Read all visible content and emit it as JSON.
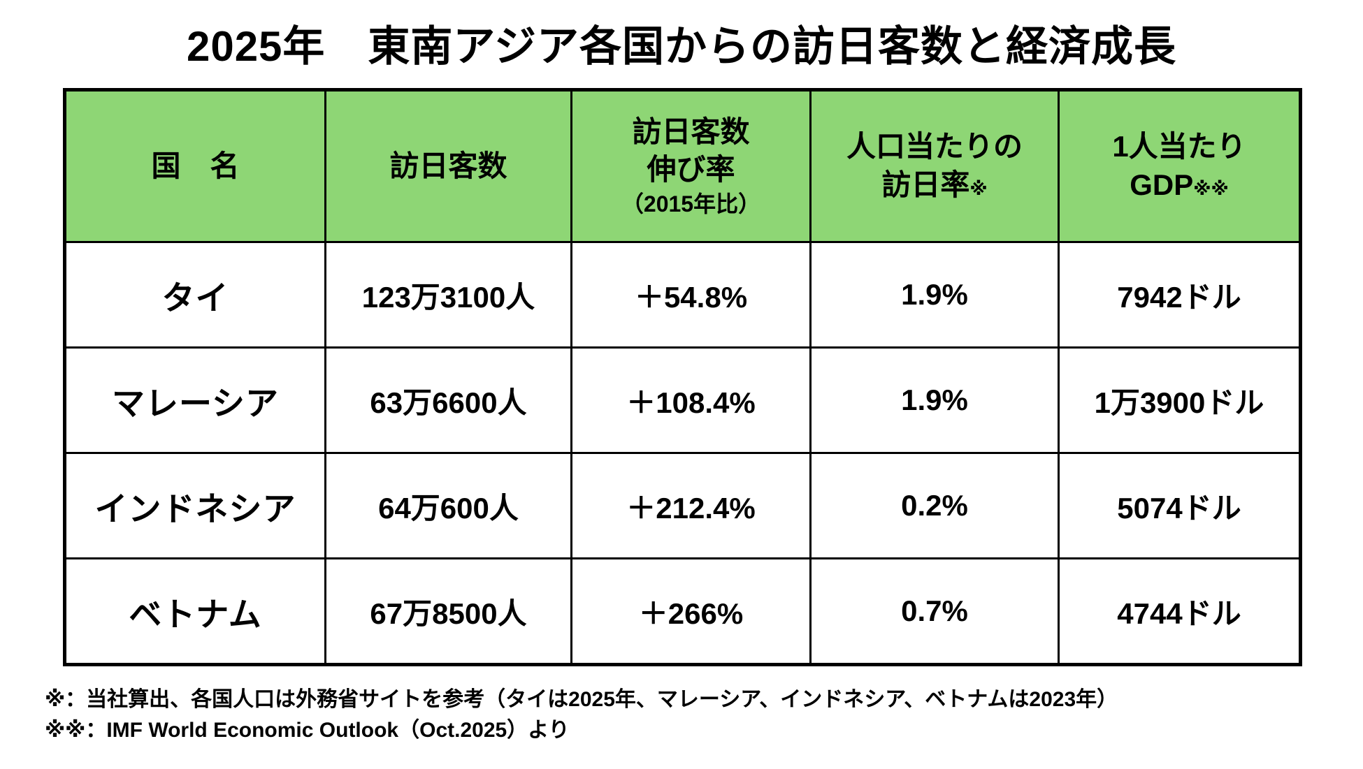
{
  "title": "2025年　東南アジア各国からの訪日客数と経済成長",
  "colors": {
    "header_bg": "#8ed675",
    "border": "#000000",
    "text": "#000000",
    "background": "#ffffff"
  },
  "table": {
    "headers": {
      "country": "国　名",
      "visitors": "訪日客数",
      "growth_line1": "訪日客数",
      "growth_line2": "伸び率",
      "growth_line3": "（2015年比）",
      "rate_line1": "人口当たりの",
      "rate_line2": "訪日率",
      "rate_note": "※",
      "gdp_line1": "1人当たり",
      "gdp_line2": "GDP",
      "gdp_note": "※※"
    }
  },
  "chart_data": {
    "type": "table",
    "title": "2025年　東南アジア各国からの訪日客数と経済成長",
    "columns": [
      "国 名",
      "訪日客数",
      "訪日客数 伸び率（2015年比）",
      "人口当たりの訪日率※",
      "1人当たりGDP※※"
    ],
    "rows": [
      {
        "country": "タイ",
        "visitors": "123万3100人",
        "growth": "＋54.8%",
        "rate": "1.9%",
        "gdp": "7942ドル"
      },
      {
        "country": "マレーシア",
        "visitors": "63万6600人",
        "growth": "＋108.4%",
        "rate": "1.9%",
        "gdp": "1万3900ドル"
      },
      {
        "country": "インドネシア",
        "visitors": "64万600人",
        "growth": "＋212.4%",
        "rate": "0.2%",
        "gdp": "5074ドル"
      },
      {
        "country": "ベトナム",
        "visitors": "67万8500人",
        "growth": "＋266%",
        "rate": "0.7%",
        "gdp": "4744ドル"
      }
    ]
  },
  "footnotes": [
    "※：当社算出、各国人口は外務省サイトを参考（タイは2025年、マレーシア、インドネシア、ベトナムは2023年）",
    "※※：IMF World Economic Outlook（Oct.2025）より"
  ]
}
